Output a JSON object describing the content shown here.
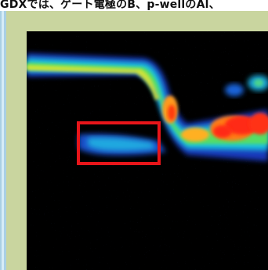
{
  "slide": {
    "title": "GDXでは、ゲート電極のB、p-wellのAl、",
    "highlight_color": "#e8151a",
    "panel_color": "#c9d59f"
  },
  "image": {
    "icon": "sims-element-map-image"
  }
}
